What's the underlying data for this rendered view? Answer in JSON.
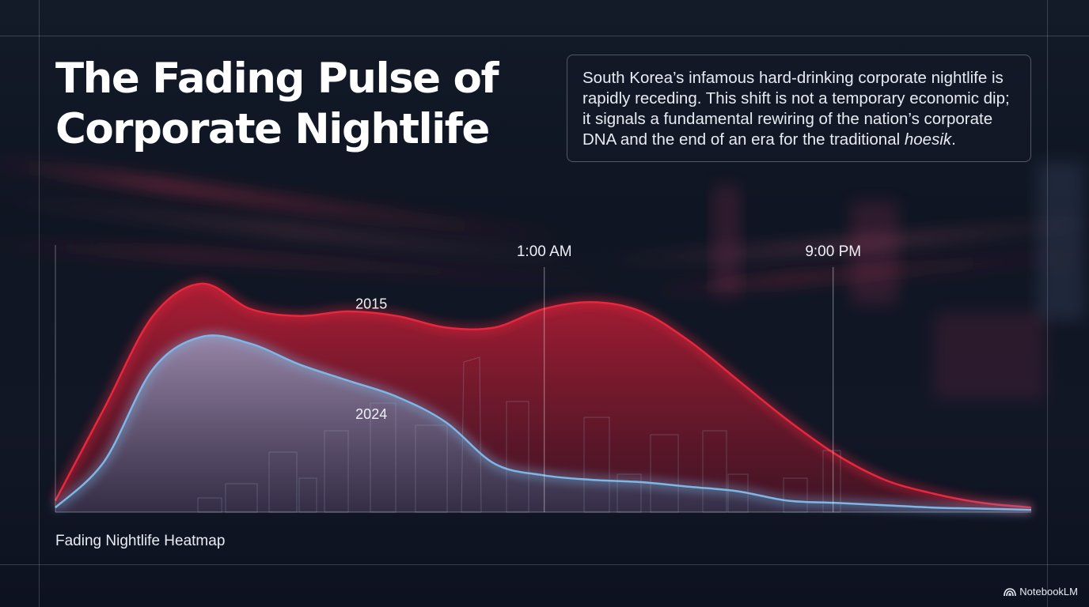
{
  "header": {
    "title_line1": "The Fading Pulse of",
    "title_line2": "Corporate Nightlife"
  },
  "description": {
    "text_before": "South Korea’s infamous hard-drinking corporate nightlife is rapidly receding. This shift is not a temporary economic dip; it signals a fundamental rewiring of the nation’s corporate DNA and the end of an era for the traditional ",
    "emphasis": "hoesik",
    "text_after": "."
  },
  "chart_data": {
    "type": "area",
    "title": "Fading Nightlife Heatmap",
    "xlabel": "",
    "ylabel": "",
    "x": [
      0,
      5,
      10,
      15,
      20,
      25,
      30,
      35,
      40,
      45,
      50,
      55,
      60,
      65,
      70,
      75,
      80,
      85,
      90,
      95,
      100
    ],
    "ylim": [
      0,
      100
    ],
    "grid": false,
    "markers": [
      {
        "label": "1:00 AM",
        "x": 50.1
      },
      {
        "label": "9:00 PM",
        "x": 79.7
      }
    ],
    "series": [
      {
        "name": "2015",
        "color": "#e8263e",
        "values": [
          5,
          45,
          85,
          99,
          88,
          85,
          87,
          85,
          80,
          80,
          88,
          91,
          87,
          74,
          57,
          40,
          25,
          14,
          8,
          4,
          2
        ]
      },
      {
        "name": "2024",
        "color": "#7eb6e6",
        "values": [
          2,
          22,
          62,
          76,
          73,
          64,
          57,
          50,
          39,
          21,
          16,
          14,
          13,
          11,
          9,
          5,
          4,
          3,
          2,
          1.5,
          1
        ]
      }
    ]
  },
  "footer": {
    "brand": "NotebookLM",
    "brand_icon": "notebooklm-logo-icon"
  },
  "colors": {
    "background": "#0f1522",
    "series_2015": "#e8263e",
    "series_2024": "#7eb6e6",
    "text": "#ffffff"
  }
}
